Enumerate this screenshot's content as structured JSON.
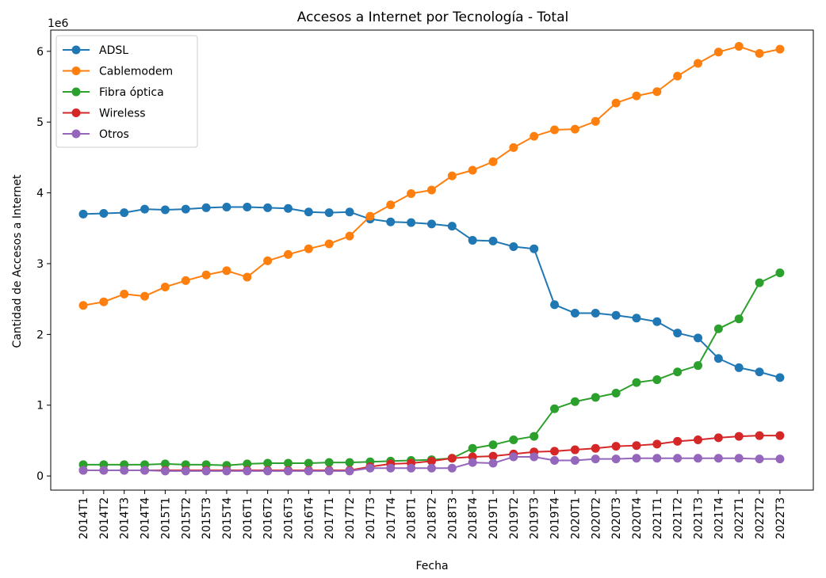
{
  "chart_data": {
    "type": "line",
    "title": "Accesos a Internet por Tecnología - Total",
    "xlabel": "Fecha",
    "ylabel": "Cantidad de Accesos a Internet",
    "y_offset_label": "1e6",
    "ylim": [
      -200000,
      6300000
    ],
    "yticks": [
      0,
      1000000,
      2000000,
      3000000,
      4000000,
      5000000,
      6000000
    ],
    "ytick_labels": [
      "0",
      "1",
      "2",
      "3",
      "4",
      "5",
      "6"
    ],
    "grid": false,
    "legend_position": "upper-left",
    "categories": [
      "2014T1",
      "2014T2",
      "2014T3",
      "2014T4",
      "2015T1",
      "2015T2",
      "2015T3",
      "2015T4",
      "2016T1",
      "2016T2",
      "2016T3",
      "2016T4",
      "2017T1",
      "2017T2",
      "2017T3",
      "2017T4",
      "2018T1",
      "2018T2",
      "2018T3",
      "2018T4",
      "2019T1",
      "2019T2",
      "2019T3",
      "2019T4",
      "2020T1",
      "2020T2",
      "2020T3",
      "2020T4",
      "2021T1",
      "2021T2",
      "2021T3",
      "2021T4",
      "2022T1",
      "2022T2",
      "2022T3"
    ],
    "series": [
      {
        "name": "ADSL",
        "color": "#1f77b4",
        "values": [
          3700000,
          3710000,
          3720000,
          3770000,
          3760000,
          3770000,
          3790000,
          3800000,
          3800000,
          3790000,
          3780000,
          3730000,
          3720000,
          3730000,
          3630000,
          3590000,
          3580000,
          3560000,
          3530000,
          3330000,
          3320000,
          3240000,
          3210000,
          2420000,
          2300000,
          2300000,
          2270000,
          2230000,
          2180000,
          2020000,
          1950000,
          1660000,
          1530000,
          1470000,
          1390000
        ]
      },
      {
        "name": "Cablemodem",
        "color": "#ff7f0e",
        "values": [
          2410000,
          2460000,
          2570000,
          2540000,
          2670000,
          2760000,
          2840000,
          2900000,
          2810000,
          3040000,
          3130000,
          3210000,
          3280000,
          3390000,
          3670000,
          3830000,
          3990000,
          4040000,
          4240000,
          4320000,
          4440000,
          4640000,
          4800000,
          4890000,
          4900000,
          5010000,
          5270000,
          5370000,
          5430000,
          5650000,
          5830000,
          5990000,
          6070000,
          5970000,
          6030000
        ]
      },
      {
        "name": "Fibra óptica",
        "color": "#2ca02c",
        "values": [
          160000,
          160000,
          160000,
          160000,
          170000,
          160000,
          160000,
          150000,
          170000,
          180000,
          180000,
          180000,
          190000,
          190000,
          200000,
          210000,
          220000,
          230000,
          250000,
          390000,
          440000,
          510000,
          560000,
          950000,
          1050000,
          1110000,
          1170000,
          1320000,
          1360000,
          1470000,
          1560000,
          2080000,
          2220000,
          2730000,
          2870000
        ]
      },
      {
        "name": "Wireless",
        "color": "#d62728",
        "values": [
          80000,
          80000,
          80000,
          80000,
          80000,
          80000,
          80000,
          80000,
          80000,
          80000,
          80000,
          80000,
          80000,
          80000,
          130000,
          170000,
          180000,
          210000,
          250000,
          270000,
          280000,
          310000,
          340000,
          350000,
          370000,
          390000,
          420000,
          430000,
          450000,
          490000,
          510000,
          540000,
          560000,
          570000,
          570000
        ]
      },
      {
        "name": "Otros",
        "color": "#9467bd",
        "values": [
          80000,
          80000,
          80000,
          80000,
          70000,
          70000,
          70000,
          70000,
          70000,
          70000,
          70000,
          70000,
          70000,
          70000,
          110000,
          110000,
          110000,
          110000,
          110000,
          190000,
          180000,
          270000,
          270000,
          220000,
          220000,
          240000,
          240000,
          250000,
          250000,
          250000,
          250000,
          250000,
          250000,
          240000,
          240000
        ]
      }
    ]
  }
}
